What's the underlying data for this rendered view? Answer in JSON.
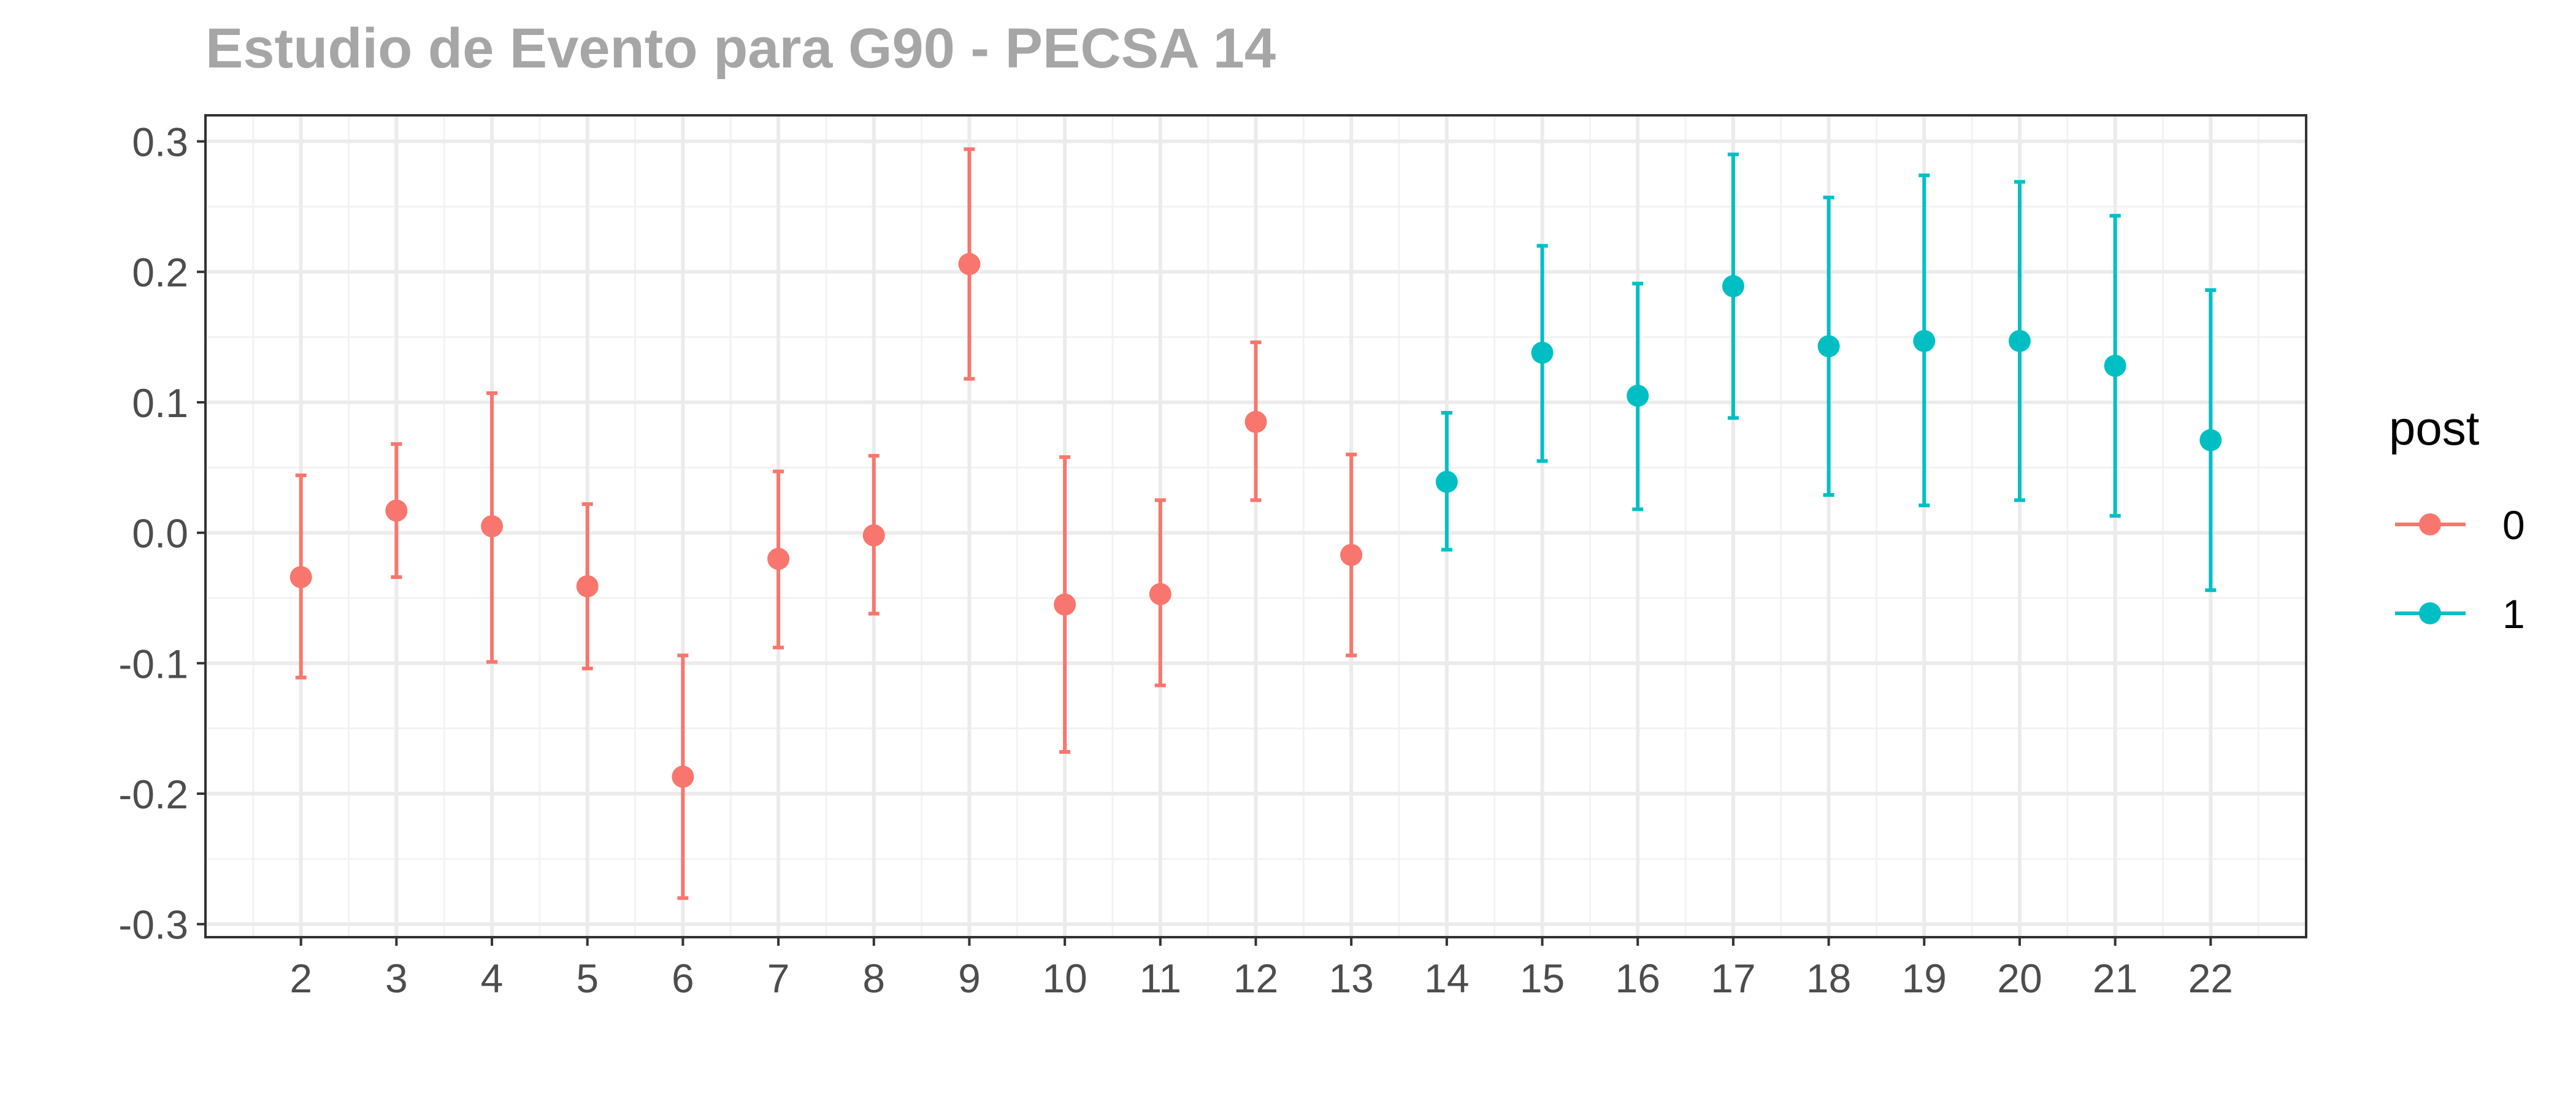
{
  "chart_data": {
    "type": "scatter",
    "title": "Estudio de Evento para G90 - PECSA 14",
    "xlabel": "",
    "ylabel": "",
    "x_ticks": [
      2,
      3,
      4,
      5,
      6,
      7,
      8,
      9,
      10,
      11,
      12,
      13,
      14,
      15,
      16,
      17,
      18,
      19,
      20,
      21,
      22
    ],
    "y_ticks": [
      -0.3,
      -0.2,
      -0.1,
      0.0,
      0.1,
      0.2,
      0.3
    ],
    "y_tick_labels": [
      "-0.3",
      "-0.2",
      "-0.1",
      "0.0",
      "0.1",
      "0.2",
      "0.3"
    ],
    "xlim": [
      1,
      23
    ],
    "ylim": [
      -0.31,
      0.32
    ],
    "grid": true,
    "legend": {
      "title": "post",
      "position": "right",
      "entries": [
        {
          "label": "0",
          "color": "#F8766D"
        },
        {
          "label": "1",
          "color": "#00BFC4"
        }
      ]
    },
    "series": [
      {
        "group": "0",
        "color": "#F8766D",
        "points": [
          {
            "x": 2,
            "y": -0.034,
            "low": -0.111,
            "high": 0.044
          },
          {
            "x": 3,
            "y": 0.017,
            "low": -0.034,
            "high": 0.068
          },
          {
            "x": 4,
            "y": 0.005,
            "low": -0.099,
            "high": 0.107
          },
          {
            "x": 5,
            "y": -0.041,
            "low": -0.104,
            "high": 0.022
          },
          {
            "x": 6,
            "y": -0.187,
            "low": -0.28,
            "high": -0.094
          },
          {
            "x": 7,
            "y": -0.02,
            "low": -0.088,
            "high": 0.047
          },
          {
            "x": 8,
            "y": -0.002,
            "low": -0.062,
            "high": 0.059
          },
          {
            "x": 9,
            "y": 0.206,
            "low": 0.118,
            "high": 0.294
          },
          {
            "x": 10,
            "y": -0.055,
            "low": -0.168,
            "high": 0.058
          },
          {
            "x": 11,
            "y": -0.047,
            "low": -0.117,
            "high": 0.025
          },
          {
            "x": 12,
            "y": 0.085,
            "low": 0.025,
            "high": 0.146
          },
          {
            "x": 13,
            "y": -0.017,
            "low": -0.094,
            "high": 0.06
          }
        ]
      },
      {
        "group": "1",
        "color": "#00BFC4",
        "points": [
          {
            "x": 14,
            "y": 0.039,
            "low": -0.013,
            "high": 0.092
          },
          {
            "x": 15,
            "y": 0.138,
            "low": 0.055,
            "high": 0.22
          },
          {
            "x": 16,
            "y": 0.105,
            "low": 0.018,
            "high": 0.191
          },
          {
            "x": 17,
            "y": 0.189,
            "low": 0.088,
            "high": 0.29
          },
          {
            "x": 18,
            "y": 0.143,
            "low": 0.029,
            "high": 0.257
          },
          {
            "x": 19,
            "y": 0.147,
            "low": 0.021,
            "high": 0.274
          },
          {
            "x": 20,
            "y": 0.147,
            "low": 0.025,
            "high": 0.269
          },
          {
            "x": 21,
            "y": 0.128,
            "low": 0.013,
            "high": 0.243
          },
          {
            "x": 22,
            "y": 0.071,
            "low": -0.044,
            "high": 0.186
          }
        ]
      }
    ]
  }
}
